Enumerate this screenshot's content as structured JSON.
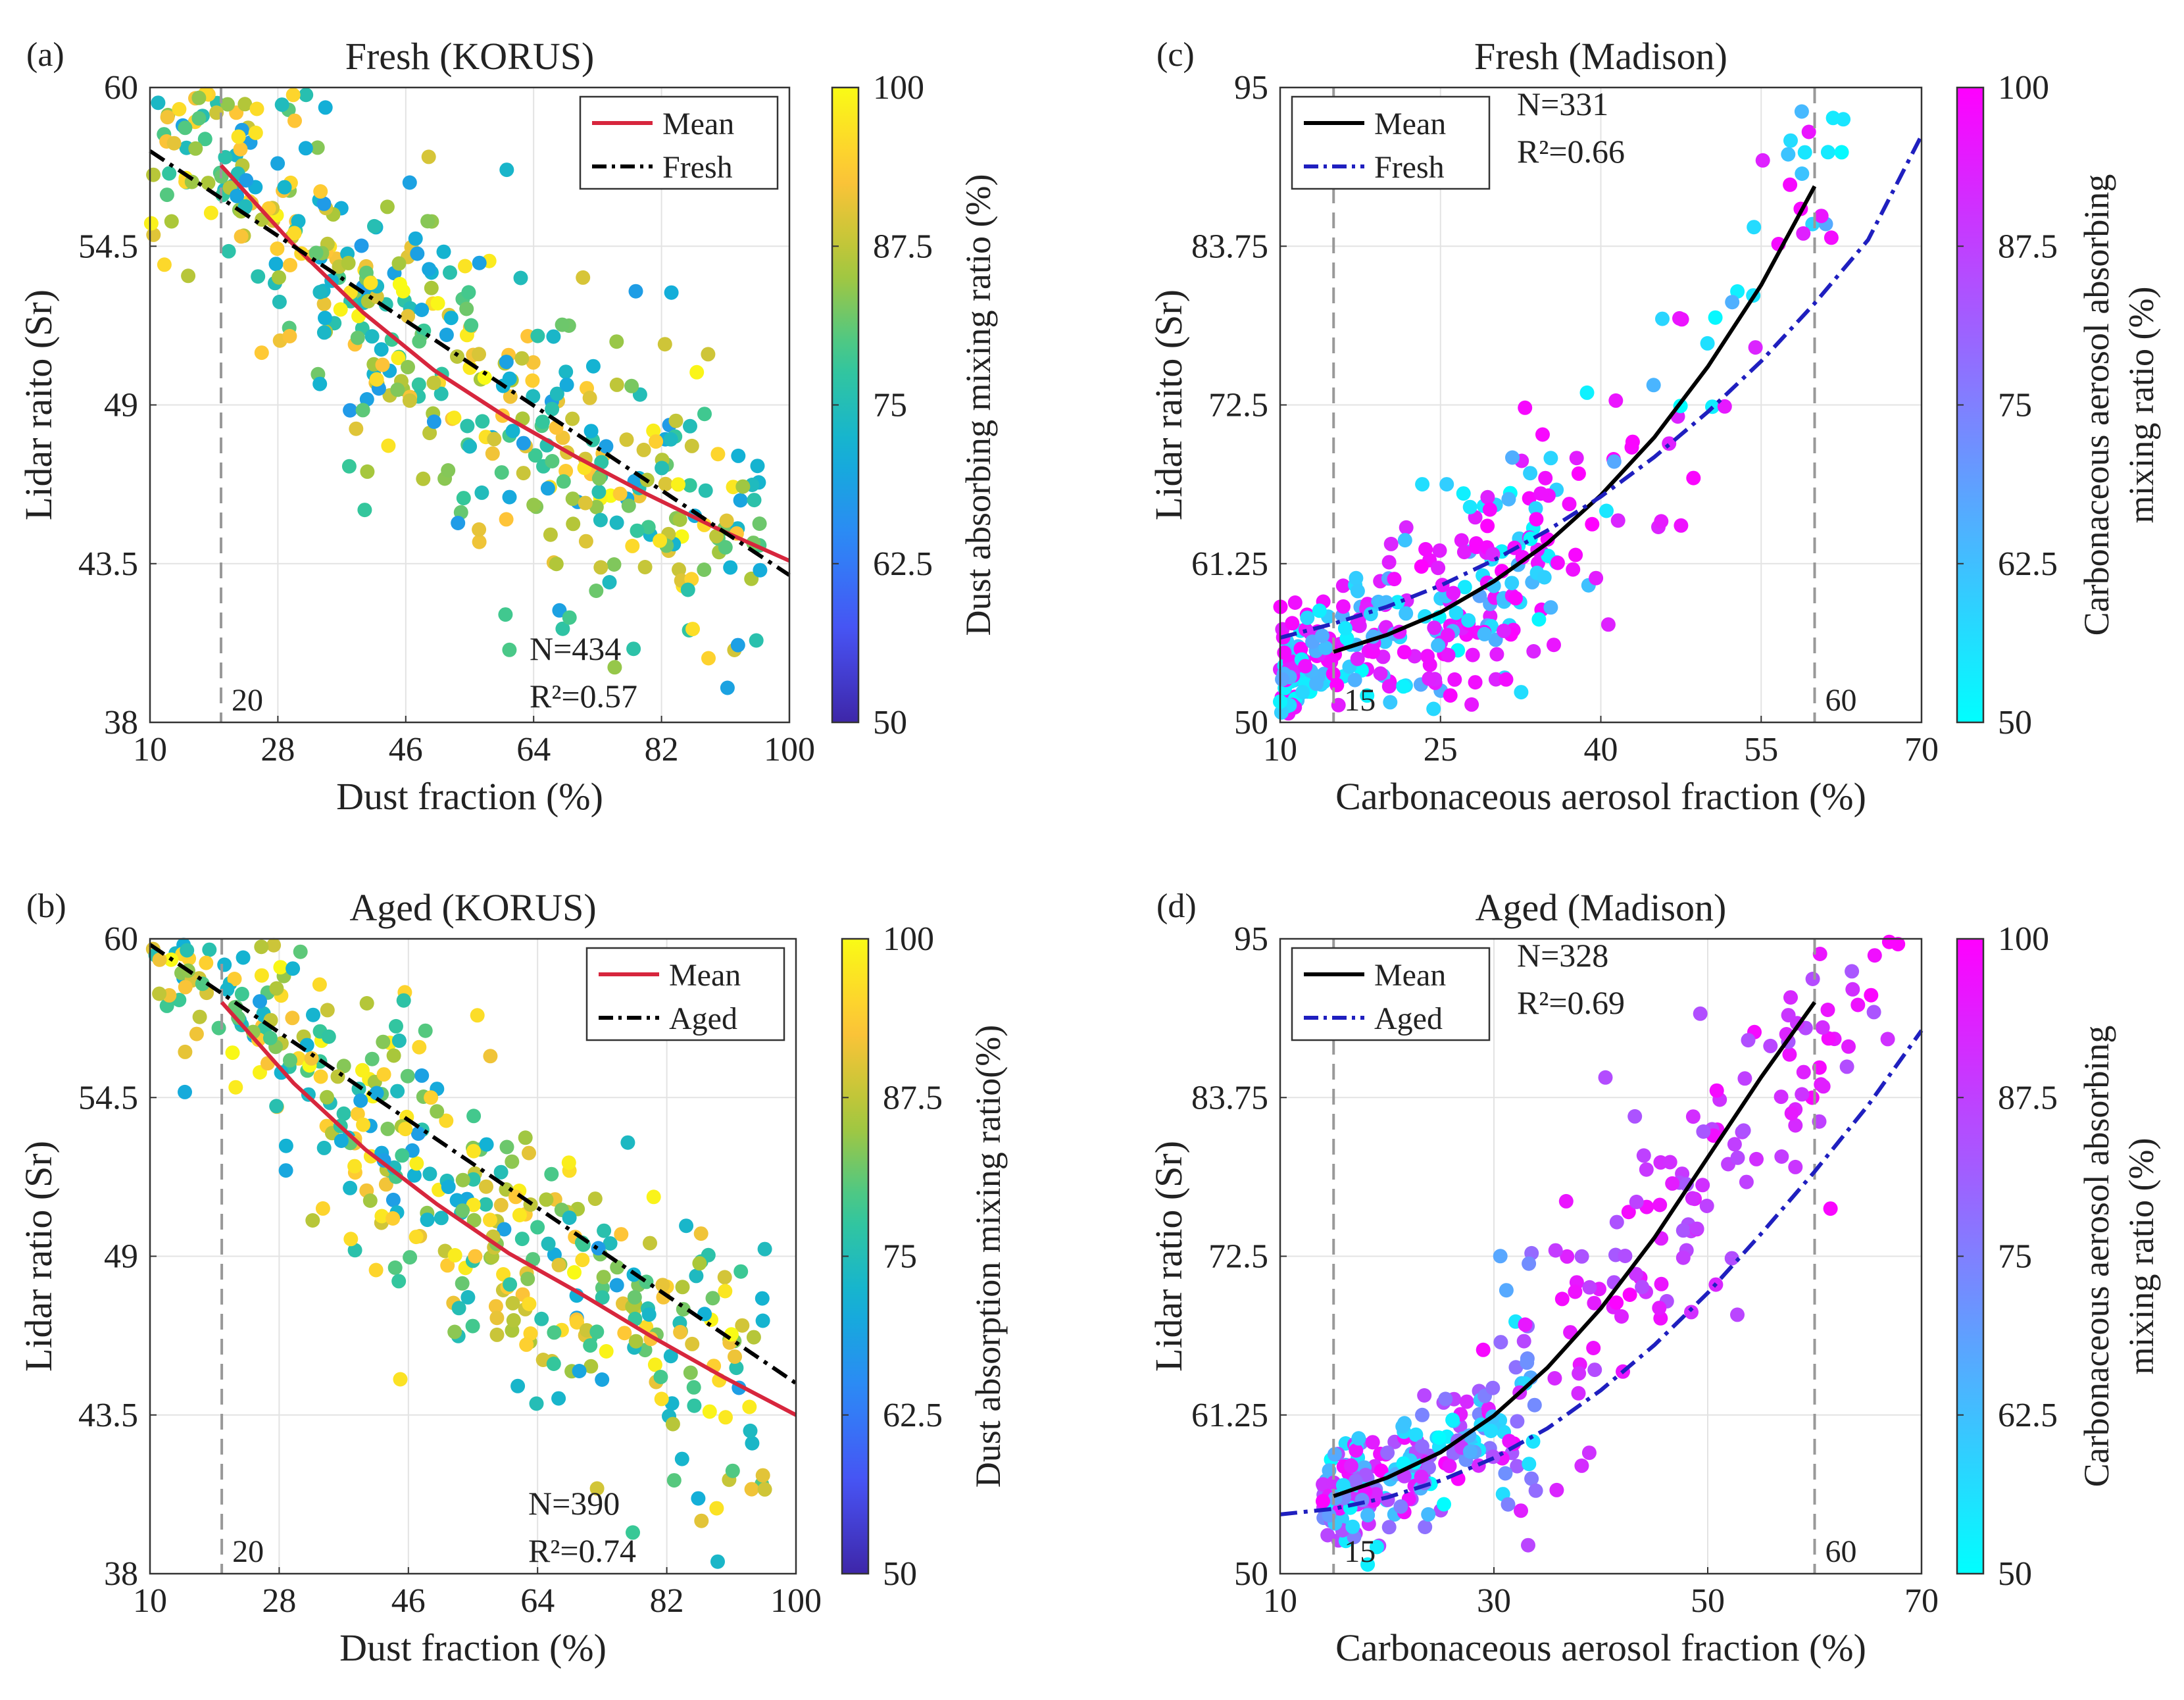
{
  "figure": {
    "panels": [
      "a",
      "b",
      "c",
      "d"
    ]
  },
  "chart_data": [
    {
      "id": "a",
      "type": "scatter",
      "panel_label": "(a)",
      "title": "Fresh (KORUS)",
      "xlabel": "Dust fraction (%)",
      "ylabel": "Lidar raito (Sr)",
      "xlim": [
        10,
        100
      ],
      "ylim": [
        38,
        60
      ],
      "xticks": [
        "10",
        "28",
        "46",
        "64",
        "82",
        "100"
      ],
      "yticks": [
        "38",
        "43.5",
        "49",
        "54.5",
        "60"
      ],
      "grid": true,
      "colorbar": {
        "label": "Dust absorbing mixing ratio (%)",
        "range": [
          50,
          100
        ],
        "ticks": [
          "50",
          "62.5",
          "75",
          "87.5",
          "100"
        ],
        "colormap": "parula"
      },
      "vline": {
        "x": 20,
        "label": "20"
      },
      "stats": {
        "n": "N=434",
        "r2": "R²=0.57"
      },
      "legend": {
        "position": "top-right",
        "entries": [
          {
            "label": "Mean",
            "color": "#d7263d",
            "style": "solid"
          },
          {
            "label": "Fresh",
            "color": "#000000",
            "style": "dashdot"
          }
        ]
      },
      "series": [
        {
          "name": "Mean",
          "x": [
            20,
            30,
            40,
            50,
            60,
            70,
            80,
            90,
            100
          ],
          "y": [
            57.3,
            54.6,
            52.2,
            50.2,
            48.6,
            47.2,
            45.9,
            44.7,
            43.6
          ]
        },
        {
          "name": "Fresh",
          "x": [
            10,
            100
          ],
          "y": [
            57.8,
            43.1
          ]
        }
      ],
      "scatter_seed": 101,
      "scatter_count": 434,
      "scatter_model": "linear"
    },
    {
      "id": "b",
      "type": "scatter",
      "panel_label": "(b)",
      "title": "Aged (KORUS)",
      "xlabel": "Dust fraction (%)",
      "ylabel": "Lidar ratio (Sr)",
      "xlim": [
        10,
        100
      ],
      "ylim": [
        38,
        60
      ],
      "xticks": [
        "10",
        "28",
        "46",
        "64",
        "82",
        "100"
      ],
      "yticks": [
        "38",
        "43.5",
        "49",
        "54.5",
        "60"
      ],
      "grid": true,
      "colorbar": {
        "label": "Dust absorption mixing ratio(%)",
        "range": [
          50,
          100
        ],
        "ticks": [
          "50",
          "62.5",
          "75",
          "87.5",
          "100"
        ],
        "colormap": "parula"
      },
      "vline": {
        "x": 20,
        "label": "20"
      },
      "stats": {
        "n": "N=390",
        "r2": "R²=0.74"
      },
      "legend": {
        "position": "top-right",
        "entries": [
          {
            "label": "Mean",
            "color": "#d7263d",
            "style": "solid"
          },
          {
            "label": "Aged",
            "color": "#000000",
            "style": "dashdot"
          }
        ]
      },
      "series": [
        {
          "name": "Mean",
          "x": [
            20,
            30,
            40,
            50,
            60,
            70,
            80,
            90,
            100
          ],
          "y": [
            57.8,
            55.0,
            52.7,
            50.8,
            49.1,
            47.7,
            46.2,
            44.8,
            43.5
          ]
        },
        {
          "name": "Aged",
          "x": [
            10,
            100
          ],
          "y": [
            59.8,
            44.6
          ]
        }
      ],
      "scatter_seed": 202,
      "scatter_count": 390,
      "scatter_model": "linear"
    },
    {
      "id": "c",
      "type": "scatter",
      "panel_label": "(c)",
      "title": "Fresh (Madison)",
      "xlabel": "Carbonaceous aerosol fraction (%)",
      "ylabel": "Lidar raito (Sr)",
      "xlim": [
        10,
        70
      ],
      "ylim": [
        50,
        95
      ],
      "xticks": [
        "10",
        "25",
        "40",
        "55",
        "70"
      ],
      "yticks": [
        "50",
        "61.25",
        "72.5",
        "83.75",
        "95"
      ],
      "grid": true,
      "colorbar": {
        "label_lines": [
          "Carbonaceous aerosol absorbing",
          "mixing ratio (%)"
        ],
        "range": [
          50,
          100
        ],
        "ticks": [
          "50",
          "62.5",
          "75",
          "87.5",
          "100"
        ],
        "colormap": "cool"
      },
      "vlines": [
        {
          "x": 15,
          "label": "15"
        },
        {
          "x": 60,
          "label": "60"
        }
      ],
      "stats": {
        "n": "N=331",
        "r2": "R²=0.66"
      },
      "legend": {
        "position": "top-left",
        "entries": [
          {
            "label": "Mean",
            "color": "#000000",
            "style": "solid"
          },
          {
            "label": "Fresh",
            "color": "#1f1fbf",
            "style": "dashdot"
          }
        ]
      },
      "series": [
        {
          "name": "Mean",
          "x": [
            15,
            20,
            25,
            30,
            35,
            40,
            45,
            50,
            55,
            60
          ],
          "y": [
            55.0,
            56.2,
            57.8,
            60.0,
            62.7,
            66.1,
            70.2,
            75.2,
            81.0,
            88.0
          ]
        },
        {
          "name": "Fresh",
          "x": [
            10,
            15,
            20,
            25,
            30,
            35,
            40,
            45,
            50,
            55,
            60,
            65,
            70
          ],
          "y": [
            56.0,
            57.0,
            58.2,
            59.7,
            61.5,
            63.6,
            66.0,
            68.8,
            72.0,
            75.6,
            79.7,
            84.2,
            91.6
          ]
        }
      ],
      "scatter_seed": 303,
      "scatter_count": 331,
      "scatter_model": "madison_fresh"
    },
    {
      "id": "d",
      "type": "scatter",
      "panel_label": "(d)",
      "title": "Aged  (Madison)",
      "xlabel": "Carbonaceous aerosol fraction (%)",
      "ylabel": "Lidar ratio (Sr)",
      "xlim": [
        10,
        70
      ],
      "ylim": [
        50,
        95
      ],
      "xticks": [
        "10",
        "30",
        "50",
        "70"
      ],
      "yticks": [
        "50",
        "61.25",
        "72.5",
        "83.75",
        "95"
      ],
      "grid": true,
      "colorbar": {
        "label_lines": [
          "Carbonaceous aerosol absorbing",
          "mixing ratio (%)"
        ],
        "range": [
          50,
          100
        ],
        "ticks": [
          "50",
          "62.5",
          "75",
          "87.5",
          "100"
        ],
        "colormap": "cool"
      },
      "vlines": [
        {
          "x": 15,
          "label": "15"
        },
        {
          "x": 60,
          "label": "60"
        }
      ],
      "stats": {
        "n": "N=328",
        "r2": "R²=0.69"
      },
      "legend": {
        "position": "top-left",
        "entries": [
          {
            "label": "Mean",
            "color": "#000000",
            "style": "solid"
          },
          {
            "label": "Aged",
            "color": "#1f1fbf",
            "style": "dashdot"
          }
        ]
      },
      "series": [
        {
          "name": "Mean",
          "x": [
            15,
            20,
            25,
            30,
            35,
            40,
            45,
            50,
            55,
            60
          ],
          "y": [
            55.5,
            56.8,
            58.6,
            61.2,
            64.6,
            68.8,
            73.8,
            79.5,
            85.2,
            90.5
          ]
        },
        {
          "name": "Aged",
          "x": [
            10,
            15,
            20,
            25,
            30,
            35,
            40,
            45,
            50,
            55,
            60,
            65,
            70
          ],
          "y": [
            54.2,
            54.6,
            55.4,
            56.6,
            58.2,
            60.3,
            63.0,
            66.2,
            69.9,
            74.1,
            78.5,
            83.2,
            88.5
          ]
        }
      ],
      "scatter_seed": 404,
      "scatter_count": 328,
      "scatter_model": "madison_aged"
    }
  ]
}
